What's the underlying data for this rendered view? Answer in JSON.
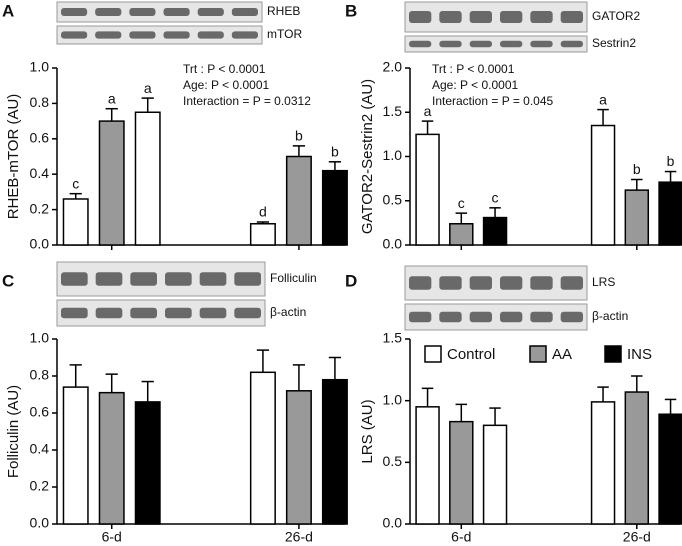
{
  "chart_data": [
    {
      "type": "bar",
      "panel": "A",
      "ylabel": "RHEB-mTOR (AU)",
      "blots": [
        "RHEB",
        "mTOR"
      ],
      "annotations": [
        "Trt  : P < 0.0001",
        "Age: P < 0.0001",
        "Interaction = P = 0.0312"
      ],
      "categories": [
        null,
        null
      ],
      "series": [
        {
          "color": "#ffffff",
          "values": [
            0.26,
            0.12
          ],
          "errors": [
            0.03,
            0.01
          ],
          "letters": [
            "c",
            "d"
          ]
        },
        {
          "color": "#999999",
          "values": [
            0.7,
            0.5
          ],
          "errors": [
            0.07,
            0.06
          ],
          "letters": [
            "a",
            "b"
          ]
        },
        {
          "color": "#000000",
          "colors": [
            "#ffffff",
            "#000000"
          ],
          "values": [
            0.75,
            0.42
          ],
          "errors": [
            0.08,
            0.05
          ],
          "letters": [
            "a",
            "b"
          ]
        }
      ],
      "ylim": [
        0,
        1
      ],
      "yticks": [
        {
          "value": 0,
          "label": "0.0"
        },
        0.2,
        0.4,
        0.6,
        0.8,
        {
          "value": 1,
          "label": "1.0"
        }
      ]
    },
    {
      "type": "bar",
      "panel": "B",
      "ylabel": "GATOR2-Sestrin2 (AU)",
      "blots": [
        "GATOR2",
        "Sestrin2"
      ],
      "annotations": [
        "Trt  : P < 0.0001",
        "Age: P < 0.0001",
        "Interaction = P = 0.045"
      ],
      "categories": [
        null,
        null
      ],
      "series": [
        {
          "color": "#ffffff",
          "values": [
            1.25,
            1.35
          ],
          "errors": [
            0.15,
            0.18
          ],
          "letters": [
            "a",
            "a"
          ]
        },
        {
          "color": "#999999",
          "values": [
            0.24,
            0.62
          ],
          "errors": [
            0.12,
            0.12
          ],
          "letters": [
            "c",
            "b"
          ]
        },
        {
          "color": "#000000",
          "values": [
            0.31,
            0.71
          ],
          "errors": [
            0.11,
            0.12
          ],
          "letters": [
            "c",
            "b"
          ]
        }
      ],
      "ylim": [
        0,
        2
      ],
      "yticks": [
        {
          "value": 0,
          "label": "0.0"
        },
        0.5,
        {
          "value": 1,
          "label": "1.0"
        },
        1.5,
        {
          "value": 2,
          "label": "2.0"
        }
      ]
    },
    {
      "type": "bar",
      "panel": "C",
      "ylabel": "Folliculin (AU)",
      "blots": [
        "Folliculin",
        "β-actin"
      ],
      "categories": [
        "6-d",
        "26-d"
      ],
      "series": [
        {
          "color": "#ffffff",
          "values": [
            0.74,
            0.82
          ],
          "errors": [
            0.12,
            0.12
          ]
        },
        {
          "color": "#999999",
          "values": [
            0.71,
            0.72
          ],
          "errors": [
            0.1,
            0.14
          ]
        },
        {
          "color": "#000000",
          "values": [
            0.66,
            0.78
          ],
          "errors": [
            0.11,
            0.12
          ]
        }
      ],
      "ylim": [
        0,
        1
      ],
      "yticks": [
        {
          "value": 0,
          "label": "0.0"
        },
        0.2,
        0.4,
        0.6,
        0.8,
        {
          "value": 1,
          "label": "1.0"
        }
      ]
    },
    {
      "type": "bar",
      "panel": "D",
      "ylabel": "LRS (AU)",
      "blots": [
        "LRS",
        "β-actin"
      ],
      "categories": [
        "6-d",
        "26-d"
      ],
      "series": [
        {
          "name": "Control",
          "color": "#ffffff",
          "values": [
            0.95,
            0.99
          ],
          "errors": [
            0.15,
            0.12
          ]
        },
        {
          "name": "AA",
          "color": "#999999",
          "values": [
            0.83,
            1.07
          ],
          "errors": [
            0.14,
            0.13
          ]
        },
        {
          "name": "INS",
          "color": "#000000",
          "colors": [
            "#ffffff",
            "#000000"
          ],
          "values": [
            0.8,
            0.89
          ],
          "errors": [
            0.14,
            0.12
          ]
        }
      ],
      "ylim": [
        0,
        1.5
      ],
      "yticks": [
        {
          "value": 0,
          "label": "0.0"
        },
        0.5,
        {
          "value": 1,
          "label": "1.0"
        },
        1.5
      ]
    }
  ]
}
